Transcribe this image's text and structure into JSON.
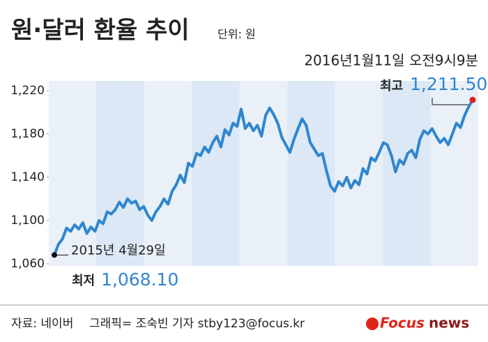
{
  "chart_data": {
    "type": "line",
    "title": "원·달러 환율 추이",
    "unit": "단위: 원",
    "subtitle": "2016년1월11일 오전9시9분",
    "color": "#2f86d0",
    "values": [
      1068.1,
      1078,
      1083,
      1093,
      1090,
      1096,
      1092,
      1098,
      1088,
      1094,
      1090,
      1100,
      1097,
      1108,
      1106,
      1110,
      1117,
      1112,
      1120,
      1116,
      1118,
      1110,
      1113,
      1105,
      1100,
      1108,
      1113,
      1120,
      1115,
      1127,
      1133,
      1142,
      1135,
      1153,
      1150,
      1162,
      1160,
      1168,
      1163,
      1172,
      1178,
      1168,
      1184,
      1179,
      1190,
      1187,
      1203,
      1185,
      1190,
      1183,
      1188,
      1178,
      1197,
      1204,
      1198,
      1190,
      1177,
      1170,
      1163,
      1175,
      1185,
      1194,
      1188,
      1172,
      1166,
      1160,
      1162,
      1146,
      1132,
      1127,
      1136,
      1132,
      1140,
      1130,
      1137,
      1133,
      1148,
      1143,
      1158,
      1155,
      1163,
      1172,
      1170,
      1160,
      1145,
      1156,
      1152,
      1162,
      1165,
      1158,
      1175,
      1183,
      1180,
      1185,
      1178,
      1172,
      1176,
      1170,
      1180,
      1190,
      1186,
      1197,
      1205,
      1211.5
    ],
    "ylim": [
      1058,
      1229
    ],
    "yticks": [
      {
        "value": 1060,
        "label": "1,060"
      },
      {
        "value": 1100,
        "label": "1,100"
      },
      {
        "value": 1140,
        "label": "1,140"
      },
      {
        "value": 1180,
        "label": "1,180"
      },
      {
        "value": 1220,
        "label": "1,220"
      }
    ],
    "annotations": [
      {
        "text": "2015년 4월29일"
      },
      {
        "text": "최저",
        "value_label": "1,068.10"
      },
      {
        "text": "최고",
        "value_label": "1,211.50"
      }
    ]
  },
  "footer": {
    "source": "자료: 네이버",
    "credit": "그래픽= 조숙빈 기자 stby123@focus.kr",
    "logo": [
      "Focus",
      "news"
    ]
  }
}
